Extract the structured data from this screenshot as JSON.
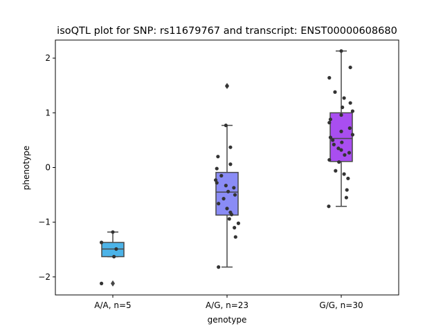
{
  "chart_data": {
    "type": "box",
    "title": "isoQTL plot for SNP: rs11679767 and transcript: ENST00000608680",
    "xlabel": "genotype",
    "ylabel": "phenotype",
    "categories": [
      "A/A, n=5",
      "A/G, n=23",
      "G/G, n=30"
    ],
    "ylim": [
      -2.33,
      2.33
    ],
    "yticks": [
      -2,
      -1,
      0,
      1,
      2
    ],
    "ytick_labels": [
      "−2",
      "−1",
      "0",
      "1",
      "2"
    ],
    "grid": false,
    "legend": "none",
    "boxes": [
      {
        "category": "A/A, n=5",
        "color": "#4cb3e8",
        "whisker_low": -1.63,
        "q1": -1.63,
        "median": -1.49,
        "q3": -1.37,
        "whisker_high": -1.18,
        "outliers": [
          -2.12
        ]
      },
      {
        "category": "A/G, n=23",
        "color": "#8a8cf6",
        "whisker_low": -1.82,
        "q1": -0.87,
        "median": -0.45,
        "q3": -0.09,
        "whisker_high": 0.77,
        "outliers": [
          1.49
        ]
      },
      {
        "category": "G/G, n=30",
        "color": "#a94ef0",
        "whisker_low": -0.71,
        "q1": 0.11,
        "median": 0.53,
        "q3": 1.0,
        "whisker_high": 2.13,
        "outliers": []
      }
    ],
    "points": [
      {
        "category": "A/A, n=5",
        "values": [
          -1.18,
          -1.37,
          -1.49,
          -1.63,
          -2.12
        ],
        "jitter": [
          0.0,
          -0.2,
          0.06,
          0.02,
          -0.2
        ]
      },
      {
        "category": "A/G, n=23",
        "values": [
          1.49,
          0.77,
          0.37,
          0.2,
          0.06,
          -0.02,
          -0.15,
          -0.23,
          -0.28,
          -0.33,
          -0.37,
          -0.44,
          -0.5,
          -0.57,
          -0.66,
          -0.75,
          -0.82,
          -0.86,
          -0.94,
          -1.02,
          -1.1,
          -1.27,
          -1.82
        ],
        "jitter": [
          0.0,
          -0.02,
          0.06,
          -0.16,
          0.06,
          -0.18,
          -0.1,
          -0.2,
          -0.18,
          -0.02,
          0.12,
          0.02,
          0.14,
          -0.06,
          -0.15,
          0.0,
          0.06,
          0.08,
          0.04,
          0.2,
          0.13,
          0.15,
          -0.15
        ]
      },
      {
        "category": "G/G, n=30",
        "values": [
          2.13,
          1.83,
          1.64,
          1.38,
          1.27,
          1.18,
          1.1,
          1.03,
          0.96,
          0.88,
          0.82,
          0.72,
          0.66,
          0.6,
          0.55,
          0.5,
          0.46,
          0.42,
          0.35,
          0.32,
          0.27,
          0.23,
          0.14,
          0.1,
          -0.06,
          -0.12,
          -0.2,
          -0.41,
          -0.55,
          -0.71
        ],
        "jitter": [
          0.0,
          0.16,
          -0.21,
          -0.11,
          0.05,
          0.16,
          0.02,
          0.2,
          0.0,
          -0.19,
          -0.21,
          0.15,
          0.0,
          0.2,
          -0.19,
          -0.15,
          0.01,
          -0.13,
          -0.05,
          0.0,
          0.14,
          0.06,
          -0.21,
          -0.04,
          -0.1,
          0.05,
          0.12,
          0.1,
          0.09,
          -0.22
        ]
      }
    ]
  },
  "style": {
    "point_color": "#333333",
    "line_color": "#474747",
    "axis_color": "#000000"
  }
}
